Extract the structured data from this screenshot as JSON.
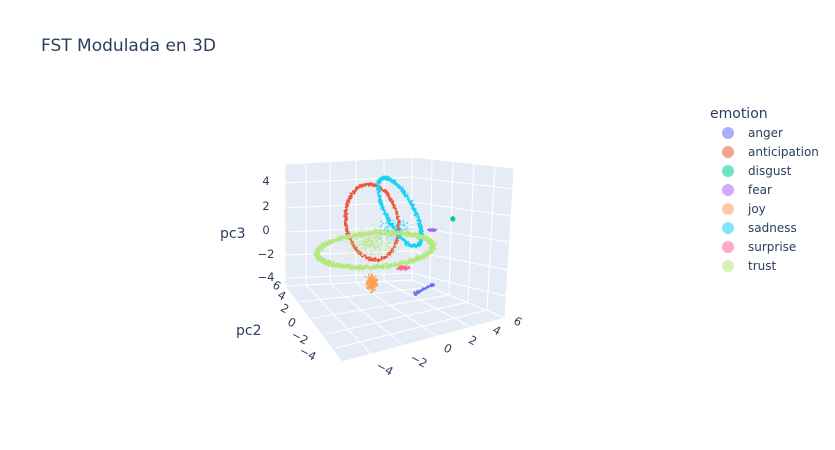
{
  "chart_data": {
    "type": "scatter",
    "title": "FST Modulada en 3D",
    "x_axis": {
      "label": "",
      "ticks": [
        "−4",
        "−2",
        "0",
        "2",
        "4",
        "6"
      ]
    },
    "y_axis": {
      "label": "pc2",
      "ticks": [
        "−4",
        "−2",
        "0",
        "2",
        "4",
        "6"
      ]
    },
    "z_axis": {
      "label": "pc3",
      "ticks": [
        "−4",
        "−2",
        "0",
        "2",
        "4"
      ]
    },
    "legend": {
      "title": "emotion",
      "placement": "right",
      "items": [
        {
          "name": "anger",
          "color": "#636efa"
        },
        {
          "name": "anticipation",
          "color": "#EF553B"
        },
        {
          "name": "disgust",
          "color": "#00cc96"
        },
        {
          "name": "fear",
          "color": "#ab63fa"
        },
        {
          "name": "joy",
          "color": "#FFA15A"
        },
        {
          "name": "sadness",
          "color": "#19d3f3"
        },
        {
          "name": "surprise",
          "color": "#FF6692"
        },
        {
          "name": "trust",
          "color": "#B6E880"
        }
      ]
    },
    "background": "#e5ecf6"
  }
}
